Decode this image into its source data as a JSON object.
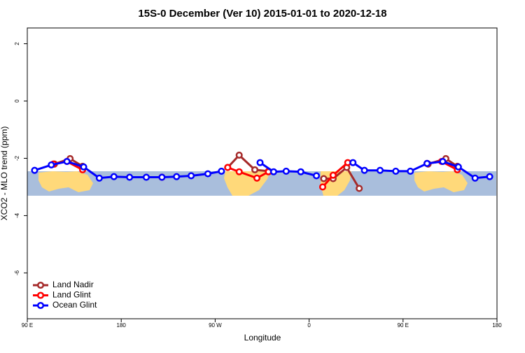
{
  "chart_data": {
    "type": "line",
    "title": "15S-0 December (Ver 10)   2015-01-01 to 2020-12-18",
    "x_label": "Longitude",
    "y_label": "XCO2 - MLO trend (ppm)",
    "xlim": [
      90,
      540
    ],
    "ylim": [
      -7.6,
      2.55
    ],
    "xticks": [
      {
        "value": 90,
        "label": "90 E"
      },
      180,
      {
        "value": 270,
        "label": "90 W"
      },
      {
        "value": 360,
        "label": "0"
      },
      {
        "value": 450,
        "label": "90 E"
      },
      {
        "value": 540,
        "label": "180"
      }
    ],
    "yticks": [
      2,
      0,
      -2,
      -4,
      -6
    ],
    "legend": "bottom-left",
    "series": [
      {
        "name": "Land Nadir",
        "color": "#a52a2a",
        "x": [
          116,
          131,
          143,
          200,
          282,
          293,
          308,
          321,
          350,
          374,
          383,
          396,
          408,
          440,
          474,
          491,
          502
        ],
        "values": [
          -2.2,
          -2.01,
          -2.28,
          null,
          -2.32,
          -1.89,
          -2.4,
          -2.45,
          null,
          -2.71,
          -2.71,
          -2.32,
          -3.05,
          null,
          -2.2,
          -2.01,
          -2.28
        ]
      },
      {
        "name": "Land Glint",
        "color": "#ff0000",
        "x": [
          115,
          128,
          143,
          180,
          219,
          250,
          282,
          293,
          310,
          321,
          350,
          373,
          383,
          397,
          440,
          473,
          487,
          502
        ],
        "values": [
          -2.2,
          -2.11,
          -2.4,
          null,
          -2.66,
          null,
          -2.32,
          -2.47,
          -2.69,
          -2.47,
          null,
          -3.0,
          -2.59,
          -2.15,
          null,
          -2.18,
          -2.11,
          -2.4
        ]
      },
      {
        "name": "Ocean Glint",
        "color": "#0000ff",
        "x": [
          97,
          113,
          128,
          144,
          159,
          173,
          188,
          204,
          219,
          233,
          247,
          263,
          276,
          295,
          313,
          326,
          338,
          352,
          367,
          385,
          402,
          413,
          428,
          443,
          457,
          473,
          488,
          503,
          519,
          533
        ],
        "values": [
          -2.42,
          -2.23,
          -2.11,
          -2.3,
          -2.69,
          -2.64,
          -2.66,
          -2.66,
          -2.66,
          -2.64,
          -2.61,
          -2.54,
          -2.45,
          null,
          -2.15,
          -2.47,
          -2.45,
          -2.47,
          -2.61,
          null,
          -2.15,
          -2.42,
          -2.42,
          -2.45,
          -2.45,
          -2.18,
          -2.11,
          -2.3,
          -2.69,
          -2.64
        ]
      }
    ]
  }
}
